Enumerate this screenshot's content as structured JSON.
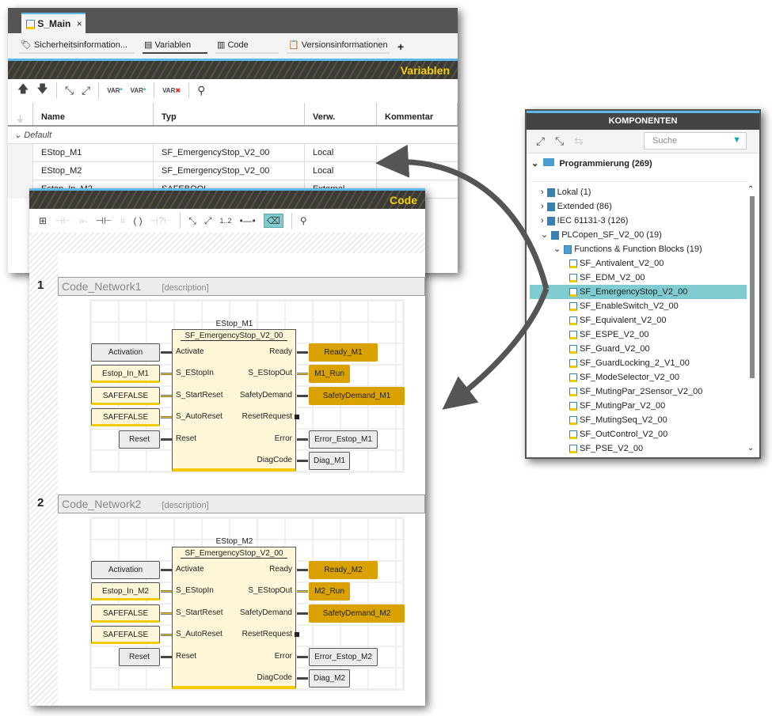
{
  "main_window": {
    "tab": "S_Main",
    "close": "×",
    "subtabs": [
      "Sicherheitsinformation...",
      "Variablen",
      "Code",
      "Versionsinformationen"
    ],
    "add_tab": "+",
    "panel_title": "Variablen",
    "columns": [
      "Name",
      "Typ",
      "Verw.",
      "Kommentar"
    ],
    "group": "Default",
    "rows": [
      {
        "name": "EStop_M1",
        "type": "SF_EmergencyStop_V2_00",
        "usage": "Local",
        "comment": ""
      },
      {
        "name": "EStop_M2",
        "type": "SF_EmergencyStop_V2_00",
        "usage": "Local",
        "comment": ""
      },
      {
        "name": "Estop_In_M2",
        "type": "SAFEBOOL",
        "usage": "External",
        "comment": ""
      }
    ]
  },
  "code_window": {
    "panel_title": "Code",
    "toolbar_zoom_label": "1..2",
    "networks": [
      {
        "number": "1",
        "name": "Code_Network1",
        "desc": "[description]",
        "instance": "EStop_M1",
        "type": "SF_EmergencyStop_V2_00",
        "inputs": [
          {
            "var": "Activation",
            "pin": "Activate",
            "kind": "std"
          },
          {
            "var": "Estop_In_M1",
            "pin": "S_EStopIn",
            "kind": "safe"
          },
          {
            "var": "SAFEFALSE",
            "pin": "S_StartReset",
            "kind": "safe"
          },
          {
            "var": "SAFEFALSE",
            "pin": "S_AutoReset",
            "kind": "safe"
          },
          {
            "var": "Reset",
            "pin": "Reset",
            "kind": "std"
          }
        ],
        "outputs": [
          {
            "var": "Ready_M1",
            "pin": "Ready",
            "kind": "out"
          },
          {
            "var": "M1_Run",
            "pin": "S_EStopOut",
            "kind": "out"
          },
          {
            "var": "SafetyDemand_M1",
            "pin": "SafetyDemand",
            "kind": "out"
          },
          {
            "var": "",
            "pin": "ResetRequest",
            "kind": "none"
          },
          {
            "var": "Error_Estop_M1",
            "pin": "Error",
            "kind": "std"
          },
          {
            "var": "Diag_M1",
            "pin": "DiagCode",
            "kind": "std"
          }
        ]
      },
      {
        "number": "2",
        "name": "Code_Network2",
        "desc": "[description]",
        "instance": "EStop_M2",
        "type": "SF_EmergencyStop_V2_00",
        "inputs": [
          {
            "var": "Activation",
            "pin": "Activate",
            "kind": "std"
          },
          {
            "var": "Estop_In_M2",
            "pin": "S_EStopIn",
            "kind": "safe"
          },
          {
            "var": "SAFEFALSE",
            "pin": "S_StartReset",
            "kind": "safe"
          },
          {
            "var": "SAFEFALSE",
            "pin": "S_AutoReset",
            "kind": "safe"
          },
          {
            "var": "Reset",
            "pin": "Reset",
            "kind": "std"
          }
        ],
        "outputs": [
          {
            "var": "Ready_M2",
            "pin": "Ready",
            "kind": "out"
          },
          {
            "var": "M2_Run",
            "pin": "S_EStopOut",
            "kind": "out"
          },
          {
            "var": "SafetyDemand_M2",
            "pin": "SafetyDemand",
            "kind": "out"
          },
          {
            "var": "",
            "pin": "ResetRequest",
            "kind": "none"
          },
          {
            "var": "Error_Estop_M2",
            "pin": "Error",
            "kind": "std"
          },
          {
            "var": "Diag_M2",
            "pin": "DiagCode",
            "kind": "std"
          }
        ]
      }
    ]
  },
  "components": {
    "title": "KOMPONENTEN",
    "search_placeholder": "Suche",
    "root": "Programmierung (269)",
    "items": [
      {
        "label": "Lokal (1)",
        "level": 0,
        "icon": "lib-local-icon"
      },
      {
        "label": "Extended (86)",
        "level": 0,
        "icon": "library-icon"
      },
      {
        "label": "IEC 61131-3 (126)",
        "level": 0,
        "icon": "library-icon"
      },
      {
        "label": "PLCopen_SF_V2_00 (19)",
        "level": 0,
        "icon": "library-icon",
        "open": true
      },
      {
        "label": "Functions & Function Blocks (19)",
        "level": 1,
        "icon": "folder-icon",
        "open": true
      },
      {
        "label": "SF_Antivalent_V2_00",
        "level": 2,
        "icon": "fb-icon"
      },
      {
        "label": "SF_EDM_V2_00",
        "level": 2,
        "icon": "fb-icon"
      },
      {
        "label": "SF_EmergencyStop_V2_00",
        "level": 2,
        "icon": "fb-icon",
        "selected": true
      },
      {
        "label": "SF_EnableSwitch_V2_00",
        "level": 2,
        "icon": "fb-icon"
      },
      {
        "label": "SF_Equivalent_V2_00",
        "level": 2,
        "icon": "fb-icon"
      },
      {
        "label": "SF_ESPE_V2_00",
        "level": 2,
        "icon": "fb-icon"
      },
      {
        "label": "SF_Guard_V2_00",
        "level": 2,
        "icon": "fb-icon"
      },
      {
        "label": "SF_GuardLocking_2_V1_00",
        "level": 2,
        "icon": "fb-icon"
      },
      {
        "label": "SF_ModeSelector_V2_00",
        "level": 2,
        "icon": "fb-icon"
      },
      {
        "label": "SF_MutingPar_2Sensor_V2_00",
        "level": 2,
        "icon": "fb-icon"
      },
      {
        "label": "SF_MutingPar_V2_00",
        "level": 2,
        "icon": "fb-icon"
      },
      {
        "label": "SF_MutingSeq_V2_00",
        "level": 2,
        "icon": "fb-icon"
      },
      {
        "label": "SF_OutControl_V2_00",
        "level": 2,
        "icon": "fb-icon"
      },
      {
        "label": "SF_PSE_V2_00",
        "level": 2,
        "icon": "fb-icon"
      }
    ]
  },
  "colors": {
    "accent": "#f5d000",
    "selection": "#7fcbcf",
    "header_blue": "#5bb8e8",
    "output_gold": "#d9a200"
  }
}
